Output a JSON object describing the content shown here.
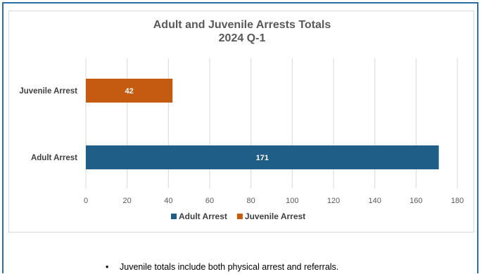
{
  "chart_data": {
    "type": "bar",
    "orientation": "horizontal",
    "title": "Adult and Juvenile Arrests Totals",
    "subtitle": "2024 Q-1",
    "categories": [
      "Juvenile Arrest",
      "Adult Arrest"
    ],
    "values": [
      42,
      171
    ],
    "bar_colors": [
      "#c55a11",
      "#1f5f87"
    ],
    "data_labels": [
      "42",
      "171"
    ],
    "xlim": [
      0,
      180
    ],
    "x_ticks": [
      "0",
      "20",
      "40",
      "60",
      "80",
      "100",
      "120",
      "140",
      "160",
      "180"
    ],
    "grid": true,
    "legend_position": "bottom",
    "legend": [
      {
        "label": "Adult Arrest",
        "color": "#1f5f87"
      },
      {
        "label": "Juvenile Arrest",
        "color": "#c55a11"
      }
    ]
  },
  "note": "Juvenile totals include both physical arrest and referrals."
}
